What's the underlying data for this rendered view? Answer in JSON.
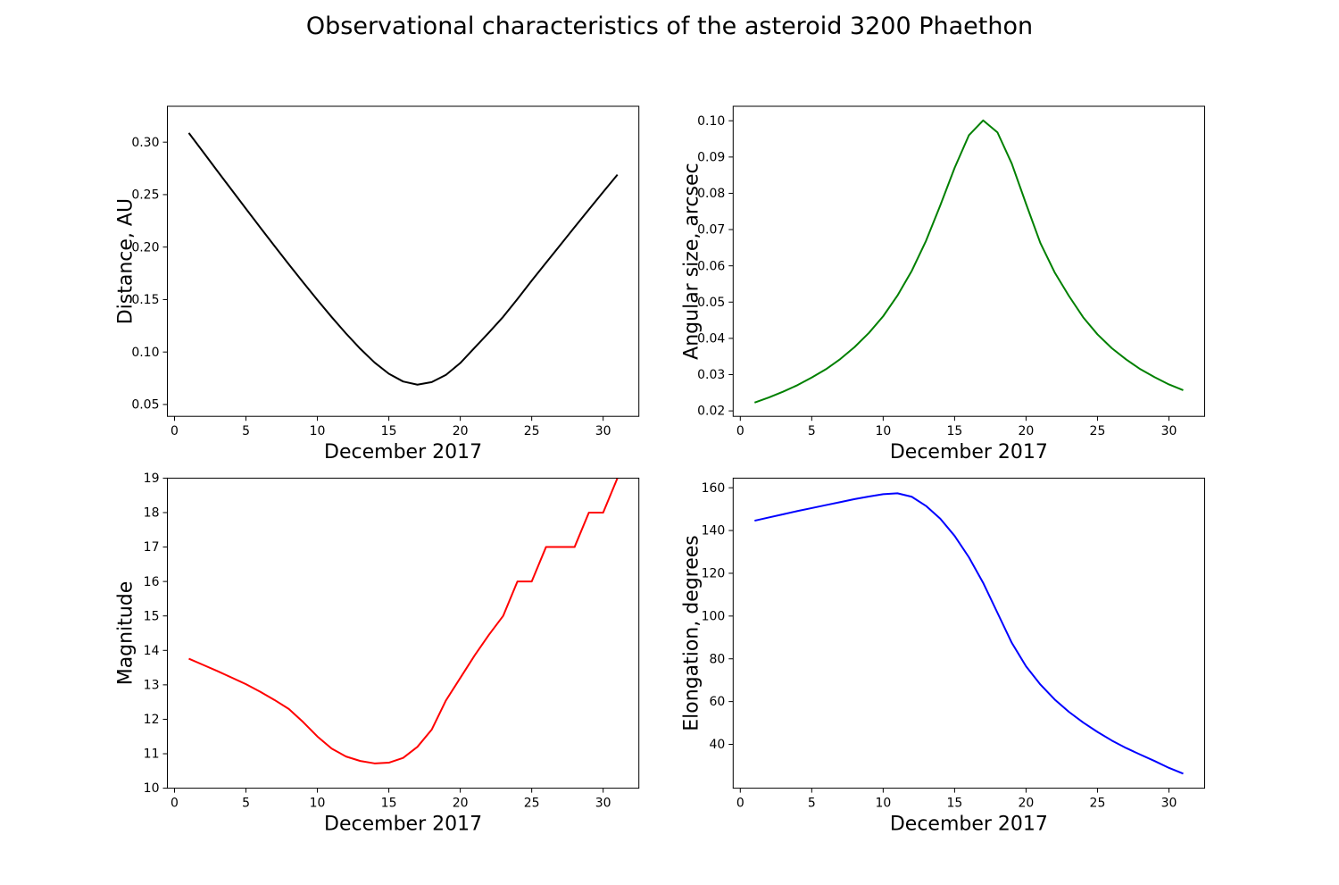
{
  "figure": {
    "title": "Observational characteristics of the asteroid 3200 Phaethon",
    "background": "#ffffff"
  },
  "chart_data": [
    {
      "type": "line",
      "name": "distance",
      "xlabel": "December 2017",
      "ylabel": "Distance, AU",
      "color": "#000000",
      "line_width": 2,
      "grid": false,
      "legend": "none",
      "x": [
        1,
        2,
        3,
        4,
        5,
        6,
        7,
        8,
        9,
        10,
        11,
        12,
        13,
        14,
        15,
        16,
        17,
        18,
        19,
        20,
        21,
        22,
        23,
        24,
        25,
        26,
        27,
        28,
        29,
        30,
        31
      ],
      "y": [
        0.3088,
        0.2907,
        0.2725,
        0.2545,
        0.2365,
        0.2187,
        0.201,
        0.1836,
        0.1664,
        0.1496,
        0.1333,
        0.1177,
        0.1031,
        0.09,
        0.0793,
        0.0719,
        0.0689,
        0.0713,
        0.0782,
        0.0895,
        0.104,
        0.1185,
        0.1335,
        0.1505,
        0.168,
        0.185,
        0.202,
        0.219,
        0.2358,
        0.2525,
        0.269
      ],
      "xlim": [
        -0.5,
        32.5
      ],
      "ylim": [
        0.0387,
        0.3342
      ],
      "xticks": [
        0,
        5,
        10,
        15,
        20,
        25,
        30
      ],
      "xtick_labels": [
        "0",
        "5",
        "10",
        "15",
        "20",
        "25",
        "30"
      ],
      "yticks": [
        0.05,
        0.1,
        0.15,
        0.2,
        0.25,
        0.3
      ],
      "ytick_labels": [
        "0.05",
        "0.10",
        "0.15",
        "0.20",
        "0.25",
        "0.30"
      ]
    },
    {
      "type": "line",
      "name": "angular-size",
      "xlabel": "December 2017",
      "ylabel": "Angular size, arcsec",
      "color": "#008000",
      "line_width": 2,
      "grid": false,
      "legend": "none",
      "x": [
        1,
        2,
        3,
        4,
        5,
        6,
        7,
        8,
        9,
        10,
        11,
        12,
        13,
        14,
        15,
        16,
        17,
        18,
        19,
        20,
        21,
        22,
        23,
        24,
        25,
        26,
        27,
        28,
        29,
        30,
        31
      ],
      "y": [
        0.0223,
        0.0237,
        0.0253,
        0.0271,
        0.0292,
        0.0315,
        0.0343,
        0.0376,
        0.0415,
        0.0461,
        0.0518,
        0.0586,
        0.0669,
        0.0767,
        0.087,
        0.096,
        0.1001,
        0.0968,
        0.0882,
        0.0771,
        0.0663,
        0.0582,
        0.0517,
        0.0458,
        0.0411,
        0.0373,
        0.0342,
        0.0315,
        0.0293,
        0.0273,
        0.0257
      ],
      "xlim": [
        -0.5,
        32.5
      ],
      "ylim": [
        0.0185,
        0.104
      ],
      "xticks": [
        0,
        5,
        10,
        15,
        20,
        25,
        30
      ],
      "xtick_labels": [
        "0",
        "5",
        "10",
        "15",
        "20",
        "25",
        "30"
      ],
      "yticks": [
        0.02,
        0.03,
        0.04,
        0.05,
        0.06,
        0.07,
        0.08,
        0.09,
        0.1
      ],
      "ytick_labels": [
        "0.02",
        "0.03",
        "0.04",
        "0.05",
        "0.06",
        "0.07",
        "0.08",
        "0.09",
        "0.10"
      ]
    },
    {
      "type": "line",
      "name": "magnitude",
      "xlabel": "December 2017",
      "ylabel": "Magnitude",
      "color": "#ff0000",
      "line_width": 2,
      "grid": false,
      "legend": "none",
      "x": [
        1,
        2,
        3,
        4,
        5,
        6,
        7,
        8,
        9,
        10,
        11,
        12,
        13,
        14,
        15,
        16,
        17,
        18,
        19,
        20,
        21,
        22,
        23,
        24,
        25,
        26,
        27,
        28,
        29,
        30,
        31
      ],
      "y": [
        13.76,
        13.58,
        13.4,
        13.21,
        13.02,
        12.8,
        12.56,
        12.3,
        11.92,
        11.5,
        11.15,
        10.92,
        10.79,
        10.72,
        10.74,
        10.88,
        11.2,
        11.7,
        12.55,
        13.2,
        13.85,
        14.45,
        15.0,
        16.0,
        16.0,
        17.0,
        17.0,
        17.0,
        18.0,
        18.0,
        19.0
      ],
      "xlim": [
        -0.5,
        32.5
      ],
      "ylim": [
        10,
        19
      ],
      "xticks": [
        0,
        5,
        10,
        15,
        20,
        25,
        30
      ],
      "xtick_labels": [
        "0",
        "5",
        "10",
        "15",
        "20",
        "25",
        "30"
      ],
      "yticks": [
        10,
        11,
        12,
        13,
        14,
        15,
        16,
        17,
        18,
        19
      ],
      "ytick_labels": [
        "10",
        "11",
        "12",
        "13",
        "14",
        "15",
        "16",
        "17",
        "18",
        "19"
      ]
    },
    {
      "type": "line",
      "name": "elongation",
      "xlabel": "December 2017",
      "ylabel": "Elongation, degrees",
      "color": "#0000ff",
      "line_width": 2,
      "grid": false,
      "legend": "none",
      "x": [
        1,
        2,
        3,
        4,
        5,
        6,
        7,
        8,
        9,
        10,
        11,
        12,
        13,
        14,
        15,
        16,
        17,
        18,
        19,
        20,
        21,
        22,
        23,
        24,
        25,
        26,
        27,
        28,
        29,
        30,
        31
      ],
      "y": [
        144.6,
        146.1,
        147.6,
        149.1,
        150.5,
        151.9,
        153.3,
        154.7,
        155.9,
        157.0,
        157.4,
        155.8,
        151.5,
        145.5,
        137.5,
        127.5,
        115.5,
        101.5,
        87.5,
        76.5,
        68.0,
        61.0,
        55.2,
        50.2,
        45.8,
        41.8,
        38.3,
        35.2,
        32.2,
        29.0,
        26.3
      ],
      "xlim": [
        -0.5,
        32.5
      ],
      "ylim": [
        19.5,
        164.5
      ],
      "xticks": [
        0,
        5,
        10,
        15,
        20,
        25,
        30
      ],
      "xtick_labels": [
        "0",
        "5",
        "10",
        "15",
        "20",
        "25",
        "30"
      ],
      "yticks": [
        40,
        60,
        80,
        100,
        120,
        140,
        160
      ],
      "ytick_labels": [
        "40",
        "60",
        "80",
        "100",
        "120",
        "140",
        "160"
      ]
    }
  ]
}
